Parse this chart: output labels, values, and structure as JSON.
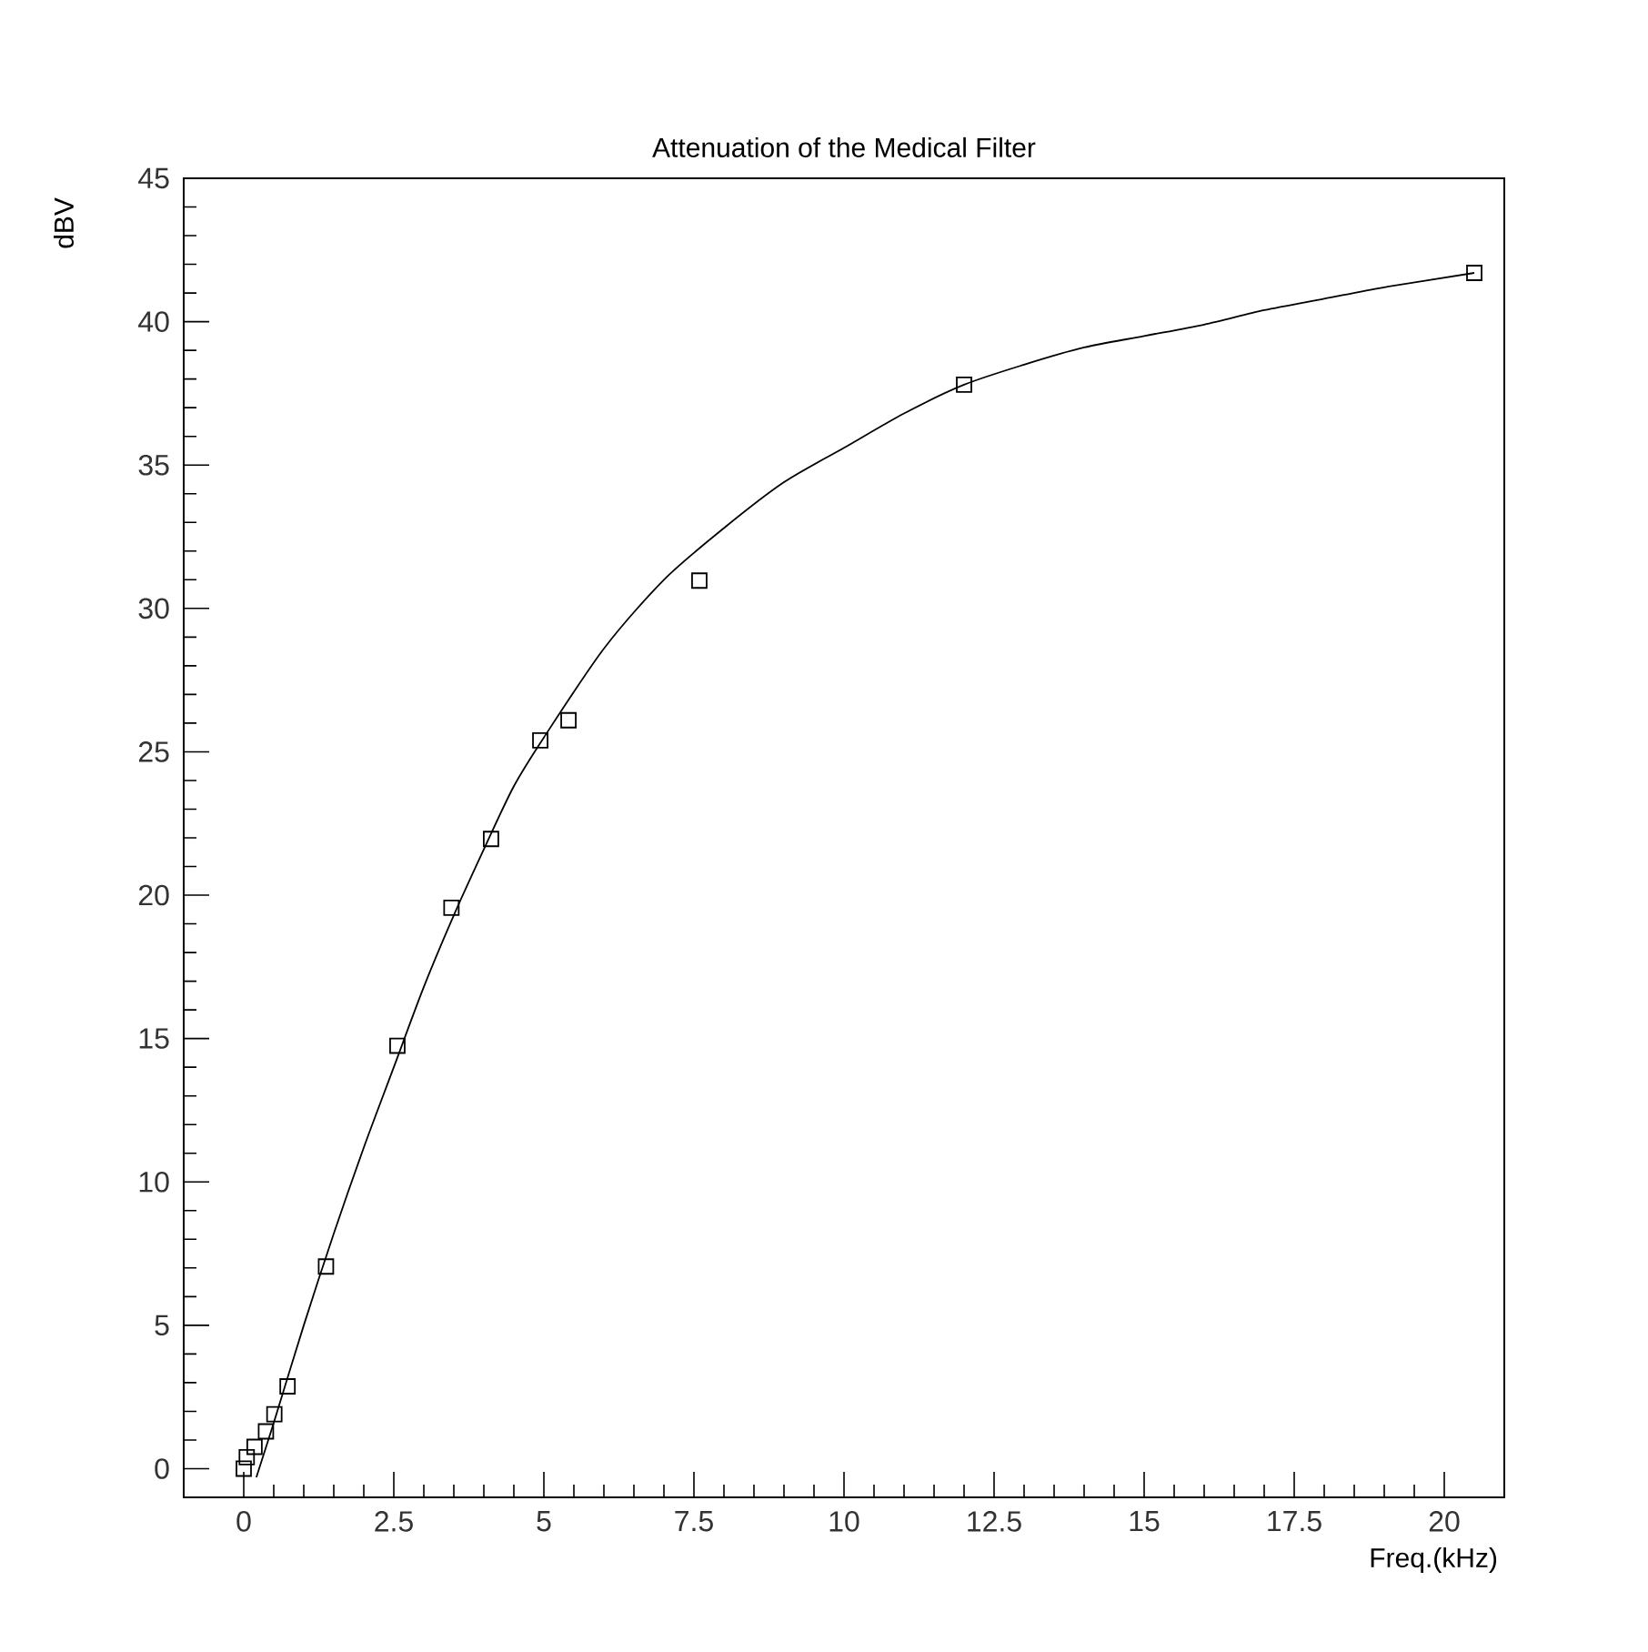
{
  "chart_data": {
    "type": "scatter",
    "title": "Attenuation of the Medical Filter",
    "xlabel": "Freq.(kHz)",
    "ylabel": "dBV",
    "xlim": [
      -1,
      21
    ],
    "ylim": [
      -1,
      45
    ],
    "xticks": [
      0,
      2.5,
      5,
      7.5,
      10,
      12.5,
      15,
      17.5,
      20
    ],
    "yticks": [
      0,
      5,
      10,
      15,
      20,
      25,
      30,
      35,
      40,
      45
    ],
    "marker": "square",
    "series": [
      {
        "type": "scatter",
        "color": "#000000",
        "x": [
          0.0,
          0.05,
          0.18,
          0.37,
          0.51,
          0.73,
          1.37,
          2.56,
          3.46,
          4.12,
          4.94,
          5.41,
          7.59,
          12.0,
          20.5
        ],
        "values": [
          0.0,
          0.4,
          0.76,
          1.3,
          1.9,
          2.87,
          7.05,
          14.75,
          19.56,
          21.96,
          25.4,
          26.1,
          30.97,
          37.8,
          41.7
        ]
      },
      {
        "type": "line",
        "color": "#000000",
        "marker": "none",
        "line_style": "solid",
        "x": [
          0.21,
          0.5,
          1,
          1.5,
          2,
          2.5,
          3,
          3.5,
          4,
          4.5,
          5,
          6,
          7,
          8,
          9,
          10,
          11,
          12,
          13,
          14,
          15,
          16,
          17,
          18,
          19,
          20.5
        ],
        "values": [
          -0.3,
          1.6,
          5.0,
          8.2,
          11.2,
          14.0,
          16.8,
          19.3,
          21.6,
          23.8,
          25.5,
          28.6,
          31.0,
          32.8,
          34.4,
          35.6,
          36.8,
          37.8,
          38.5,
          39.1,
          39.5,
          39.9,
          40.4,
          40.8,
          41.2,
          41.7
        ]
      }
    ]
  }
}
